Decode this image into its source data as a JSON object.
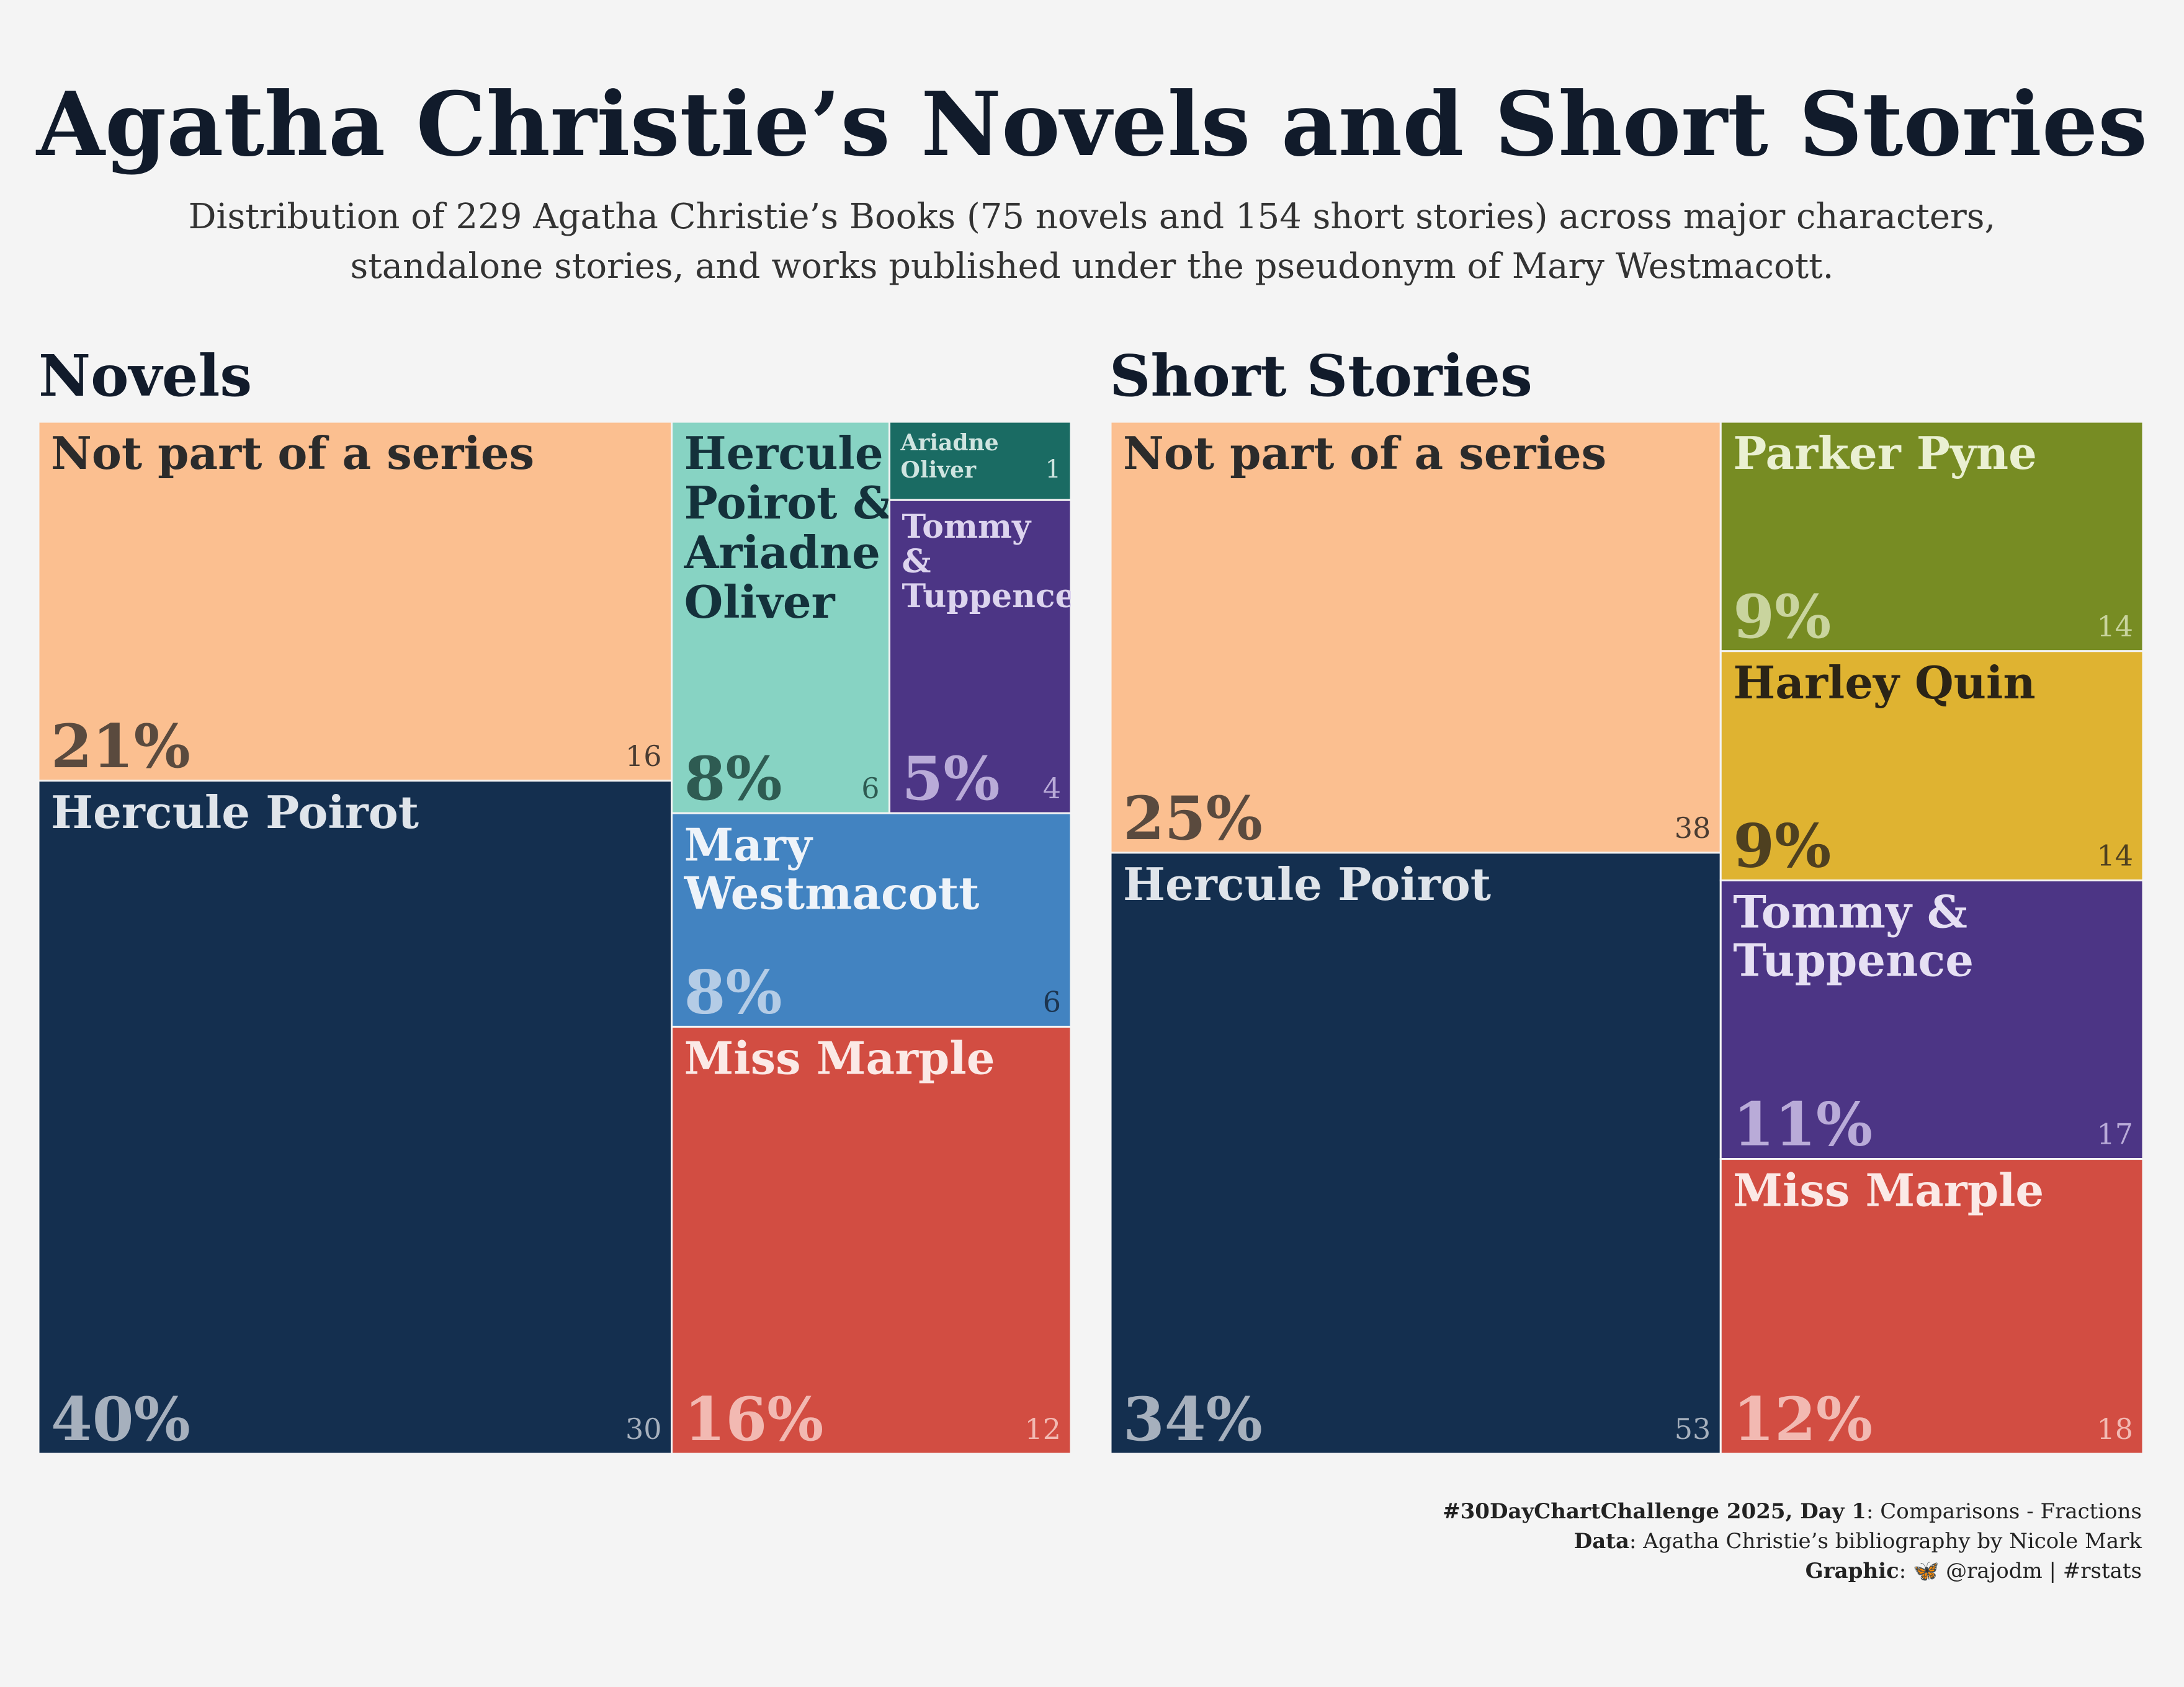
{
  "title": "Agatha Christie’s Novels and Short Stories",
  "subtitle_line1": "Distribution of 229 Agatha Christie’s Books (75 novels and 154 short stories) across major characters,",
  "subtitle_line2": "standalone stories, and works published under the pseudonym of Mary Westmacott.",
  "chart_data": [
    {
      "type": "treemap",
      "title": "Novels",
      "total": 75,
      "tiles": [
        {
          "label": [
            "Not part of a series"
          ],
          "value": 16,
          "percent": "21%",
          "color": "#fbbf90"
        },
        {
          "label": [
            "Hercule Poirot"
          ],
          "value": 30,
          "percent": "40%",
          "color": "#142f4f"
        },
        {
          "label": [
            "Hercule",
            "Poirot &",
            "Ariadne",
            "Oliver"
          ],
          "value": 6,
          "percent": "8%",
          "color": "#87d3c3"
        },
        {
          "label": [
            "Ariadne",
            "Oliver"
          ],
          "value": 1,
          "percent": "",
          "color": "#1a6b63"
        },
        {
          "label": [
            "Tommy",
            "&",
            "Tuppence"
          ],
          "value": 4,
          "percent": "5%",
          "color": "#4c3585"
        },
        {
          "label": [
            "Mary",
            "Westmacott"
          ],
          "value": 6,
          "percent": "8%",
          "color": "#4283c1"
        },
        {
          "label": [
            "Miss Marple"
          ],
          "value": 12,
          "percent": "16%",
          "color": "#d24d42"
        }
      ]
    },
    {
      "type": "treemap",
      "title": "Short Stories",
      "total": 154,
      "tiles": [
        {
          "label": [
            "Not part of a series"
          ],
          "value": 38,
          "percent": "25%",
          "color": "#fbbf90"
        },
        {
          "label": [
            "Hercule Poirot"
          ],
          "value": 53,
          "percent": "34%",
          "color": "#142f4f"
        },
        {
          "label": [
            "Parker Pyne"
          ],
          "value": 14,
          "percent": "9%",
          "color": "#778c23"
        },
        {
          "label": [
            "Harley Quin"
          ],
          "value": 14,
          "percent": "9%",
          "color": "#dfb331"
        },
        {
          "label": [
            "Tommy &",
            "Tuppence"
          ],
          "value": 17,
          "percent": "11%",
          "color": "#4c3585"
        },
        {
          "label": [
            "Miss Marple"
          ],
          "value": 18,
          "percent": "12%",
          "color": "#d24d42"
        }
      ]
    }
  ],
  "footer": {
    "line1_bold": "#30DayChartChallenge 2025, Day 1",
    "line1_rest": ": Comparisons - Fractions",
    "line2_bold": "Data",
    "line2_rest": ": Agatha Christie’s bibliography by Nicole Mark",
    "line3_bold": "Graphic",
    "line3_rest": ": 🦋 @rajodm | #rstats"
  }
}
